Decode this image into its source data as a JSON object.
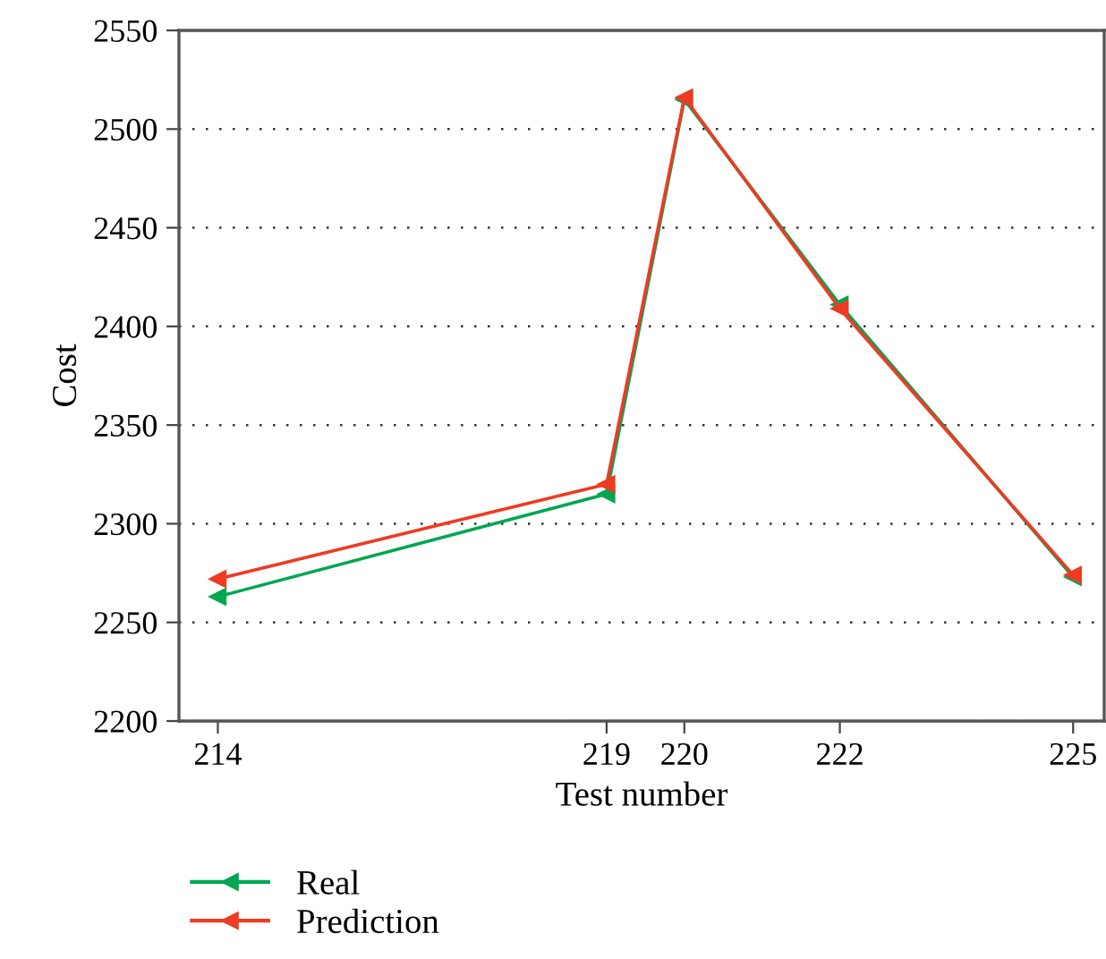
{
  "chart_data": {
    "type": "line",
    "xlabel": "Test number",
    "ylabel": "Cost",
    "x": [
      214,
      219,
      220,
      222,
      225
    ],
    "series": [
      {
        "name": "Real",
        "color": "#00a651",
        "values": [
          2263,
          2315,
          2515,
          2411,
          2273
        ]
      },
      {
        "name": "Prediction",
        "color": "#ee3b24",
        "values": [
          2272,
          2320,
          2516,
          2409,
          2274
        ]
      }
    ],
    "xlim": [
      213.5,
      225.4
    ],
    "xticks": [
      214,
      219,
      220,
      222,
      225
    ],
    "ylim": [
      2200,
      2550
    ],
    "yticks": [
      2200,
      2250,
      2300,
      2350,
      2400,
      2450,
      2500,
      2550
    ],
    "grid": "y",
    "legend": "bottom",
    "marker": "triangle",
    "line_style": "solid"
  }
}
